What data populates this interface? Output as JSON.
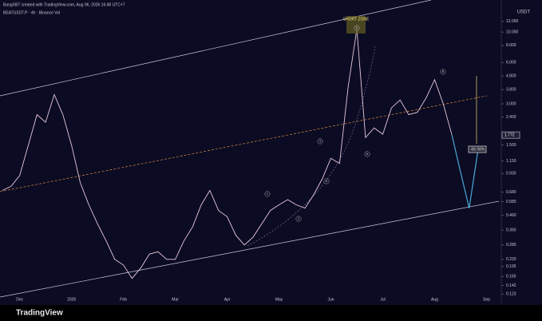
{
  "header": {
    "author_line": "BangXBT created with TradingView.com, Aug 06, 2026 16:48 UTC+7",
    "symbol_line": "BEATUSDT.P · 4h · Binance   Vol",
    "currency": "USDT",
    "brand": "TradingView"
  },
  "chart_data": {
    "type": "line",
    "log_scale": true,
    "categories": [
      null,
      null,
      "Dec",
      null,
      null,
      null,
      null,
      null,
      "2026",
      null,
      null,
      null,
      null,
      null,
      "Feb",
      null,
      null,
      null,
      null,
      null,
      "Mar",
      null,
      null,
      null,
      null,
      null,
      "Apr",
      null,
      null,
      null,
      null,
      null,
      "May",
      null,
      null,
      null,
      null,
      null,
      "Jun",
      null,
      null,
      null,
      null,
      null,
      "Jul",
      null,
      null,
      null,
      null,
      null,
      "Aug",
      null,
      null,
      null,
      null,
      null,
      "Sep"
    ],
    "series": [
      {
        "color": "#e9c9d9",
        "values": [
          0.7,
          0.75,
          0.9,
          1.5,
          2.5,
          2.2,
          3.5,
          2.5,
          1.5,
          0.8,
          0.55,
          0.4,
          0.3,
          0.22,
          0.2,
          0.16,
          0.19,
          0.24,
          0.25,
          0.22,
          0.22,
          0.3,
          0.38,
          0.55,
          0.7,
          0.5,
          0.45,
          0.33,
          0.28,
          0.32,
          0.4,
          0.5,
          0.55,
          0.6,
          0.55,
          0.52,
          0.65,
          0.85,
          1.2,
          1.1,
          4.0,
          10.5,
          1.7,
          2.0,
          1.8,
          2.8,
          3.2,
          2.5,
          2.6,
          3.3,
          4.5,
          3.0,
          1.772,
          null,
          null,
          null,
          null
        ]
      },
      {
        "color": "#4aa8d8",
        "values": [
          null,
          null,
          null,
          null,
          null,
          null,
          null,
          null,
          null,
          null,
          null,
          null,
          null,
          null,
          null,
          null,
          null,
          null,
          null,
          null,
          null,
          null,
          null,
          null,
          null,
          null,
          null,
          null,
          null,
          null,
          null,
          null,
          null,
          null,
          null,
          null,
          null,
          null,
          null,
          null,
          null,
          null,
          null,
          null,
          null,
          null,
          null,
          null,
          null,
          null,
          null,
          null,
          1.772,
          0.95,
          0.52,
          1.35,
          null
        ]
      }
    ],
    "ylim": [
      0.12,
      15
    ],
    "yticks": [
      {
        "value": 12,
        "label": "12.000"
      },
      {
        "value": 10,
        "label": "10.000"
      },
      {
        "value": 8,
        "label": "8.000"
      },
      {
        "value": 6,
        "label": "6.000"
      },
      {
        "value": 4.8,
        "label": "4.800"
      },
      {
        "value": 3.8,
        "label": "3.800"
      },
      {
        "value": 3,
        "label": "3.000"
      },
      {
        "value": 2.4,
        "label": "2.400"
      },
      {
        "value": 1.5,
        "label": "1.500"
      },
      {
        "value": 1.15,
        "label": "1.150"
      },
      {
        "value": 0.93,
        "label": "0.930"
      },
      {
        "value": 0.68,
        "label": "0.680"
      },
      {
        "value": 0.58,
        "label": "0.580"
      },
      {
        "value": 0.46,
        "label": "0.460"
      },
      {
        "value": 0.36,
        "label": "0.360"
      },
      {
        "value": 0.28,
        "label": "0.280"
      },
      {
        "value": 0.22,
        "label": "0.220"
      },
      {
        "value": 0.195,
        "label": "0.195"
      },
      {
        "value": 0.165,
        "label": "0.165"
      },
      {
        "value": 0.142,
        "label": "0.142"
      },
      {
        "value": 0.123,
        "label": "0.123"
      }
    ],
    "annotations": [
      "SHORT ZONE",
      "-68.98%",
      "1",
      "2",
      "3",
      "4",
      "5",
      "A",
      "B"
    ]
  }
}
